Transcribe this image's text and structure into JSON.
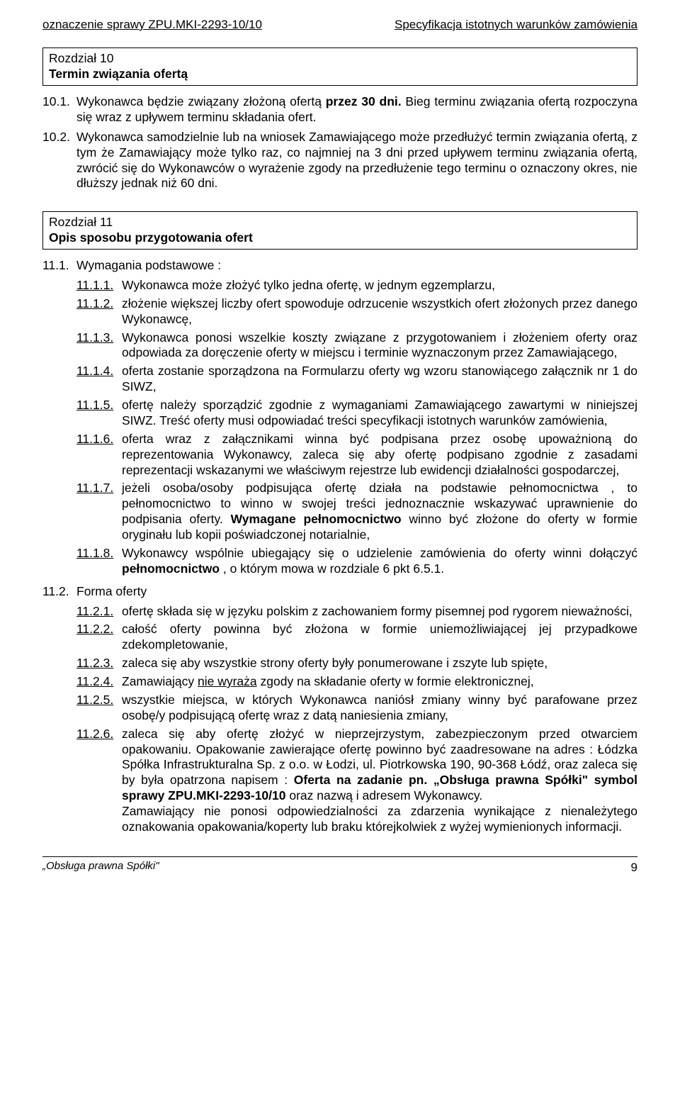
{
  "header": {
    "left": "oznaczenie sprawy ZPU.MKI-2293-10/10",
    "right": "Specyfikacja istotnych warunków zamówienia"
  },
  "section10": {
    "title": "Rozdział 10",
    "subtitle": "Termin związania ofertą",
    "items": [
      {
        "num": "10.1.",
        "text": "Wykonawca będzie związany złożoną ofertą <b>przez 30 dni.</b> Bieg terminu związania ofertą rozpoczyna się wraz z upływem terminu składania ofert."
      },
      {
        "num": "10.2.",
        "text": "Wykonawca samodzielnie lub na wniosek Zamawiającego może przedłużyć termin związania ofertą, z tym że Zamawiający może tylko raz, co najmniej na 3 dni przed upływem terminu związania ofertą, zwrócić się do Wykonawców o wyrażenie zgody na przedłużenie tego terminu o oznaczony okres, nie dłuższy jednak niż 60 dni."
      }
    ]
  },
  "section11": {
    "title": "Rozdział 11",
    "subtitle": "Opis sposobu przygotowania ofert",
    "group1": {
      "num": "11.1.",
      "label": "Wymagania podstawowe :",
      "items": [
        {
          "num": "11.1.1.",
          "text": "Wykonawca może złożyć tylko jedna ofertę, w jednym egzemplarzu,"
        },
        {
          "num": "11.1.2.",
          "text": "złożenie większej liczby ofert spowoduje odrzucenie wszystkich ofert złożonych przez danego Wykonawcę,"
        },
        {
          "num": "11.1.3.",
          "text": "Wykonawca ponosi wszelkie koszty związane z przygotowaniem i złożeniem oferty oraz odpowiada  za doręczenie oferty w miejscu i terminie wyznaczonym przez Zamawiającego,"
        },
        {
          "num": "11.1.4.",
          "text": "oferta zostanie sporządzona na Formularzu oferty wg wzoru stanowiącego załącznik nr 1 do SIWZ,"
        },
        {
          "num": "11.1.5.",
          "text": "ofertę należy sporządzić zgodnie z wymaganiami Zamawiającego zawartymi w niniejszej SIWZ. Treść oferty musi odpowiadać treści specyfikacji istotnych warunków zamówienia,"
        },
        {
          "num": "11.1.6.",
          "text": "oferta wraz z załącznikami winna być podpisana przez osobę upoważnioną do reprezentowania Wykonawcy, zaleca się aby ofertę podpisano zgodnie z zasadami reprezentacji wskazanymi we właściwym rejestrze lub ewidencji działalności gospodarczej,"
        },
        {
          "num": "11.1.7.",
          "text": "jeżeli osoba/osoby podpisująca ofertę działa na podstawie pełnomocnictwa , to pełnomocnictwo to winno w swojej treści jednoznacznie wskazywać uprawnienie do podpisania oferty. <b>Wymagane pełnomocnictwo</b> winno  być złożone do oferty w formie oryginału lub kopii poświadczonej notarialnie,"
        },
        {
          "num": "11.1.8.",
          "text": "Wykonawcy wspólnie ubiegający się o udzielenie zamówienia do oferty winni dołączyć <b>pełnomocnictwo</b> , o którym mowa w rozdziale 6 pkt 6.5.1."
        }
      ]
    },
    "group2": {
      "num": "11.2.",
      "label": "Forma oferty",
      "items": [
        {
          "num": "11.2.1.",
          "text": "ofertę składa się w języku polskim z zachowaniem formy pisemnej pod rygorem nieważności,"
        },
        {
          "num": "11.2.2.",
          "text": "całość oferty powinna być złożona w formie uniemożliwiającej jej przypadkowe zdekompletowanie,"
        },
        {
          "num": "11.2.3.",
          "text": "zaleca się aby wszystkie strony oferty były ponumerowane i zszyte lub spięte,"
        },
        {
          "num": "11.2.4.",
          "text": "Zamawiający <u>nie wyraża</u> zgody na składanie oferty w formie elektronicznej,"
        },
        {
          "num": "11.2.5.",
          "text": "wszystkie miejsca, w których Wykonawca naniósł zmiany winny być parafowane przez osobę/y podpisującą ofertę wraz z datą naniesienia zmiany,"
        },
        {
          "num": "11.2.6.",
          "text": "zaleca się aby ofertę złożyć w nieprzejrzystym, zabezpieczonym przed otwarciem opakowaniu. Opakowanie zawierające ofertę powinno być zaadresowane na adres : Łódzka Spółka Infrastrukturalna Sp. z o.o. w Łodzi, ul. Piotrkowska 190, 90-368 Łódź, oraz zaleca się by była opatrzona napisem : <b>Oferta na zadanie pn. „Obsługa prawna Spółki\" symbol sprawy ZPU.MKI-2293-10/10</b> oraz nazwą i adresem Wykonawcy.<br>Zamawiający nie ponosi odpowiedzialności za zdarzenia wynikające z nienależytego oznakowania opakowania/koperty lub braku którejkolwiek z wyżej wymienionych informacji."
        }
      ]
    }
  },
  "footer": {
    "left": "„Obsługa prawna Spółki\"",
    "page": "9"
  }
}
